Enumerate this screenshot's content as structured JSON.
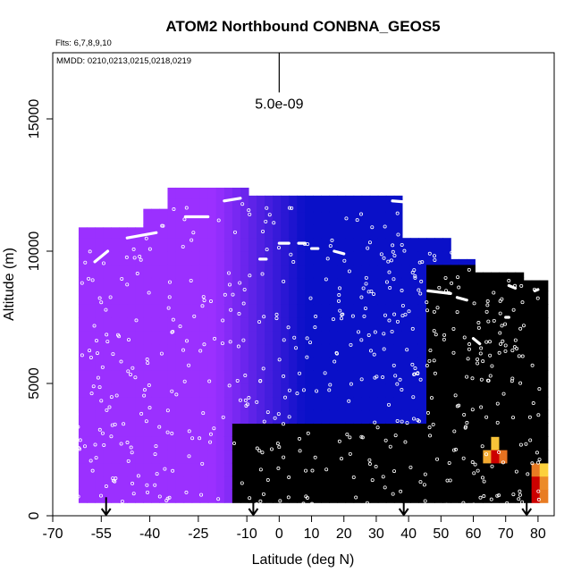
{
  "chart_data": {
    "type": "heatmap",
    "title": "ATOM2 Northbound CONBNA_GEOS5",
    "flights_label": "Flts: 6,7,8,9,10",
    "dates_label": "MMDD: 0210,0213,0215,0218,0219",
    "xlabel": "Latitude (deg N)",
    "ylabel": "Altitude (m)",
    "xlim": [
      -70,
      85
    ],
    "ylim": [
      0,
      17500
    ],
    "x_ticks": [
      {
        "value": -70,
        "label": "-70"
      },
      {
        "value": -55,
        "label": "-55"
      },
      {
        "value": -40,
        "label": "-40"
      },
      {
        "value": -25,
        "label": "-25"
      },
      {
        "value": -10,
        "label": "-10"
      },
      {
        "value": 0,
        "label": "0"
      },
      {
        "value": 10,
        "label": "10"
      },
      {
        "value": 20,
        "label": "20"
      },
      {
        "value": 30,
        "label": "30"
      },
      {
        "value": 40,
        "label": "40"
      },
      {
        "value": 50,
        "label": "50"
      },
      {
        "value": 60,
        "label": "60"
      },
      {
        "value": 70,
        "label": "70"
      },
      {
        "value": 80,
        "label": "80"
      }
    ],
    "y_ticks": [
      {
        "value": 0,
        "label": "0"
      },
      {
        "value": 5000,
        "label": "5000"
      },
      {
        "value": 10000,
        "label": "10000"
      },
      {
        "value": 15000,
        "label": "15000"
      }
    ],
    "scale_bar": {
      "label": "5.0e-09",
      "x": 0,
      "y_top": 17500,
      "y_bottom": 16000
    },
    "arrows_at_latitude": [
      -53.5,
      -8,
      38.5,
      76.5
    ],
    "colors": {
      "southern_purple": "#9b30ff",
      "mid_blue": "#0a10c8",
      "deep_blue": "#0000a8",
      "cyan": "#22c8ff",
      "light_cyan": "#b0f0ff",
      "hot_yellow": "#ffe040",
      "hot_red": "#cc0000",
      "track_color": "#ffffff"
    }
  }
}
